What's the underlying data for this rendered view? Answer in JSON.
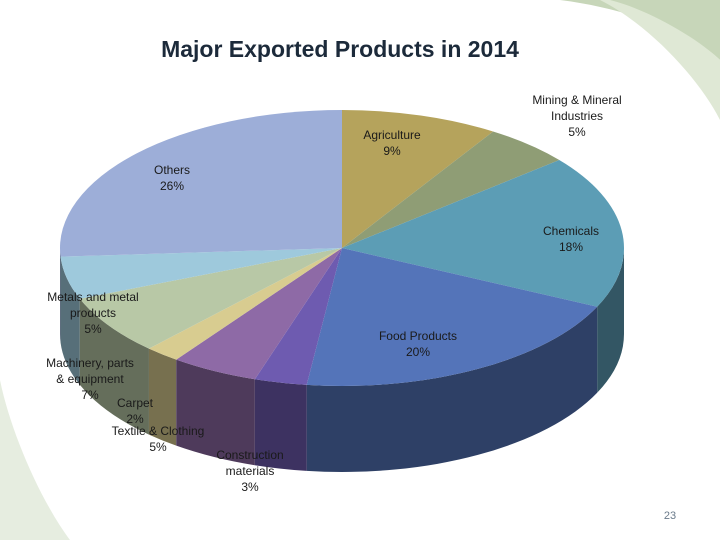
{
  "colors": {
    "background": "#ffffff",
    "corner_accent": "#a9c29a"
  },
  "chart_data": {
    "type": "pie",
    "title": "Major Exported Products in 2014",
    "style": "3d-exploded-none",
    "slices": [
      {
        "label": "Agriculture",
        "value": 9,
        "value_label": "9%",
        "color": "#b5a35c"
      },
      {
        "label": "Mining & Mineral Industries",
        "value": 5,
        "value_label": "5%",
        "color": "#8f9d75"
      },
      {
        "label": "Chemicals",
        "value": 18,
        "value_label": "18%",
        "color": "#5c9db5"
      },
      {
        "label": "Food Products",
        "value": 20,
        "value_label": "20%",
        "color": "#5474b9"
      },
      {
        "label": "Construction materials",
        "value": 3,
        "value_label": "3%",
        "color": "#6e5bb0"
      },
      {
        "label": "Textile & Clothing",
        "value": 5,
        "value_label": "5%",
        "color": "#8e6aa6"
      },
      {
        "label": "Carpet",
        "value": 2,
        "value_label": "2%",
        "color": "#d8cc90"
      },
      {
        "label": "Machinery, parts & equipment",
        "value": 7,
        "value_label": "7%",
        "color": "#b8c8a6"
      },
      {
        "label": "Metals and metal products",
        "value": 5,
        "value_label": "5%",
        "color": "#9ec9dc"
      },
      {
        "label": "Others",
        "value": 26,
        "value_label": "26%",
        "color": "#9daed8"
      }
    ]
  },
  "labels": {
    "agriculture": [
      "Agriculture",
      "9%"
    ],
    "mining": [
      "Mining & Mineral",
      "Industries",
      "5%"
    ],
    "chemicals": [
      "Chemicals",
      "18%"
    ],
    "food": [
      "Food Products",
      "20%"
    ],
    "construction": [
      "Construction",
      "materials",
      "3%"
    ],
    "textile": [
      "Textile & Clothing",
      "5%"
    ],
    "carpet": [
      "Carpet",
      "2%"
    ],
    "machinery": [
      "Machinery, parts",
      "& equipment",
      "7%"
    ],
    "metals": [
      "Metals and metal",
      "products",
      "5%"
    ],
    "others": [
      "Others",
      "26%"
    ]
  },
  "footer": {
    "page_number": "23"
  }
}
